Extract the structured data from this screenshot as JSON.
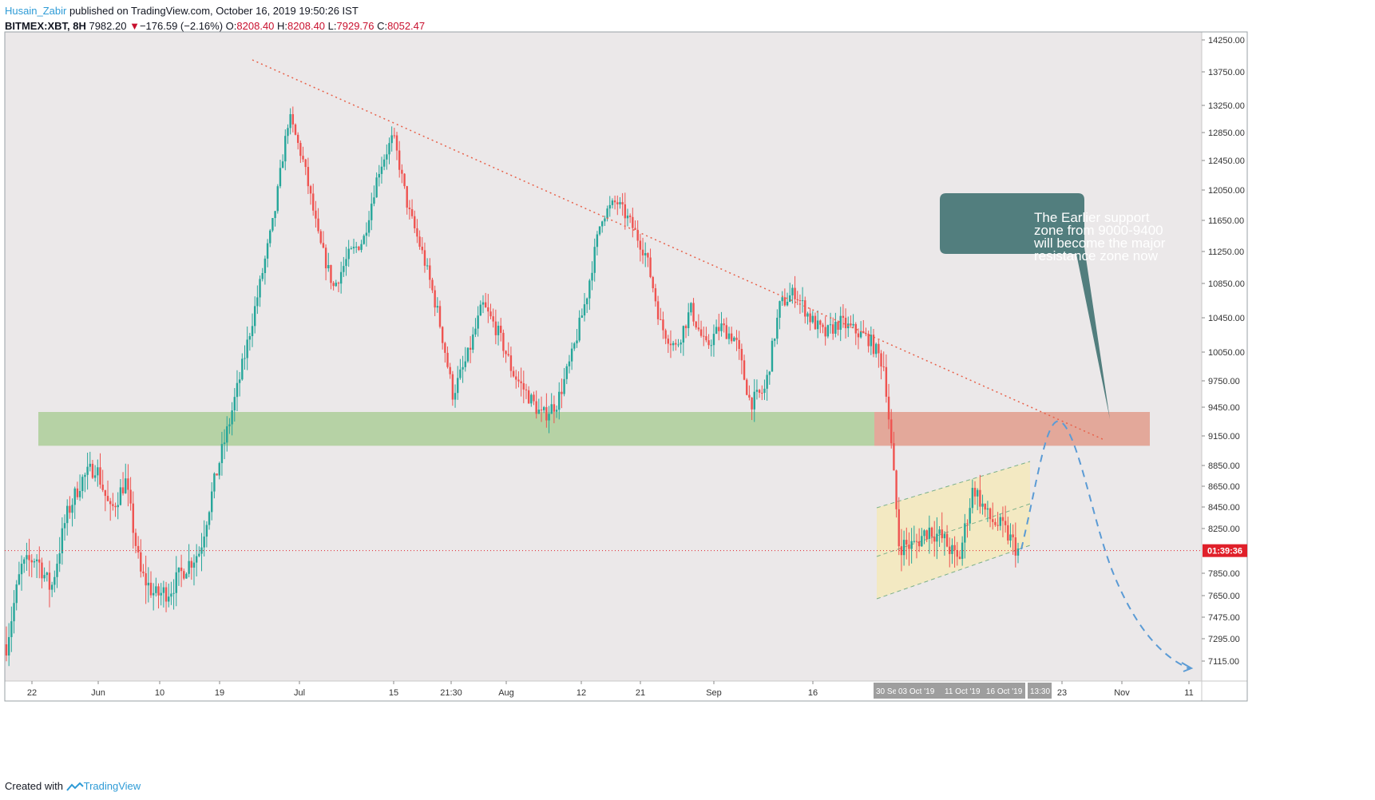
{
  "header": {
    "author": "Husain_Zabir",
    "published": " published on TradingView.com, October 16, 2019 19:50:26 IST",
    "symbol": "BITMEX:XBT, 8H",
    "price": "7982.20",
    "change_arrow": "▼",
    "change": "−176.59 (−2.16%)",
    "o_label": "O:",
    "o": "8208.40",
    "h_label": "H:",
    "h": "8208.40",
    "l_label": "L:",
    "l": "7929.76",
    "c_label": "C:",
    "c": "8052.47"
  },
  "footer": {
    "created_with": "Created with",
    "brand": "TradingView",
    "logo_icon": "tradingview-logo-icon"
  },
  "callout": {
    "lines": [
      "The Earlier support",
      "zone from 9000-9400",
      "will become the major",
      "resistance zone now"
    ]
  },
  "price_tag": "01:39:36",
  "time_badges": [
    "30 Sep '19",
    "03 Oct '19",
    "11 Oct '19",
    "16 Oct '19",
    "13:30"
  ],
  "colors": {
    "background": "#ebe8e9",
    "bull": "#26a69a",
    "bear": "#ef5350",
    "support_zone": "#b6d2a5",
    "resistance_zone": "#e3a89a",
    "channel": "#f3e9c2",
    "trendline": "#e8614a",
    "projection": "#5b9bd5",
    "callout": "#527e7e",
    "price_tag": "#e0202a"
  },
  "chart_data": {
    "type": "candlestick",
    "symbol": "BITMEX:XBT",
    "timeframe": "8H",
    "y_ticks": [
      14250,
      13750,
      13250,
      12850,
      12450,
      12050,
      11650,
      11250,
      10850,
      10450,
      10050,
      9750,
      9450,
      9150,
      8850,
      8650,
      8450,
      8250,
      7850,
      7650,
      7475,
      7295,
      7115
    ],
    "x_ticks": [
      "22",
      "Jun",
      "10",
      "19",
      "Jul",
      "15",
      "21:30",
      "Aug",
      "12",
      "21",
      "Sep",
      "16",
      "23",
      "Nov",
      "11"
    ],
    "ylim": [
      6950,
      14400
    ],
    "price_path": [
      [
        0,
        7250
      ],
      [
        2,
        7900
      ],
      [
        4,
        8000
      ],
      [
        6,
        7700
      ],
      [
        8,
        8350
      ],
      [
        10,
        8700
      ],
      [
        12,
        8850
      ],
      [
        14,
        8400
      ],
      [
        16,
        8700
      ],
      [
        18,
        7850
      ],
      [
        20,
        7650
      ],
      [
        22,
        7700
      ],
      [
        24,
        7900
      ],
      [
        26,
        8050
      ],
      [
        28,
        8700
      ],
      [
        30,
        9300
      ],
      [
        32,
        10000
      ],
      [
        34,
        10800
      ],
      [
        36,
        11700
      ],
      [
        38,
        13100
      ],
      [
        40,
        12400
      ],
      [
        42,
        11400
      ],
      [
        44,
        10800
      ],
      [
        46,
        11200
      ],
      [
        48,
        11400
      ],
      [
        50,
        12300
      ],
      [
        52,
        12800
      ],
      [
        54,
        11800
      ],
      [
        56,
        11200
      ],
      [
        58,
        10500
      ],
      [
        60,
        9600
      ],
      [
        62,
        10000
      ],
      [
        64,
        10600
      ],
      [
        66,
        10300
      ],
      [
        68,
        9850
      ],
      [
        70,
        9600
      ],
      [
        72,
        9350
      ],
      [
        74,
        9500
      ],
      [
        76,
        10000
      ],
      [
        78,
        10700
      ],
      [
        80,
        11700
      ],
      [
        82,
        11900
      ],
      [
        84,
        11600
      ],
      [
        86,
        11200
      ],
      [
        88,
        10350
      ],
      [
        90,
        10100
      ],
      [
        92,
        10550
      ],
      [
        94,
        10100
      ],
      [
        96,
        10350
      ],
      [
        98,
        10200
      ],
      [
        100,
        9500
      ],
      [
        102,
        9650
      ],
      [
        104,
        10600
      ],
      [
        106,
        10750
      ],
      [
        108,
        10450
      ],
      [
        110,
        10250
      ],
      [
        112,
        10400
      ],
      [
        114,
        10300
      ],
      [
        116,
        10200
      ],
      [
        118,
        9900
      ],
      [
        120,
        8100
      ],
      [
        122,
        8100
      ],
      [
        124,
        8250
      ],
      [
        126,
        8150
      ],
      [
        128,
        7950
      ],
      [
        130,
        8650
      ],
      [
        132,
        8350
      ],
      [
        134,
        8250
      ],
      [
        136,
        8052
      ]
    ],
    "zones": [
      {
        "label": "support",
        "from": 9050,
        "to": 9400
      },
      {
        "label": "resistance",
        "from": 9050,
        "to": 9400
      }
    ],
    "last_price": 8052.47
  }
}
